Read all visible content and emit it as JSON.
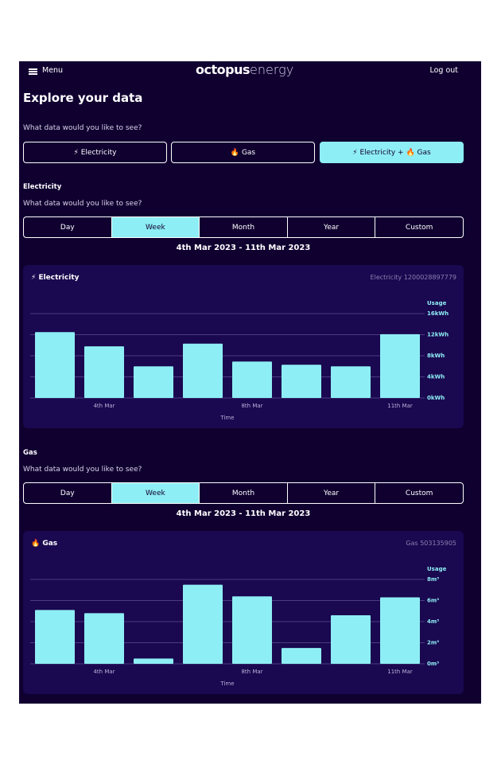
{
  "header": {
    "menu": "Menu",
    "logo_bold": "octopus",
    "logo_light": "energy",
    "logout": "Log out"
  },
  "page": {
    "title": "Explore your data",
    "question": "What data would you like to see?",
    "fuel_options": [
      "⚡ Electricity",
      "🔥 Gas",
      "⚡ Electricity + 🔥 Gas"
    ],
    "fuel_selected": 2
  },
  "sections": [
    {
      "heading": "Electricity",
      "question": "What data would you like to see?",
      "periods": [
        "Day",
        "Week",
        "Month",
        "Year",
        "Custom"
      ],
      "period_selected": 1,
      "date_range": "4th Mar 2023 - 11th Mar 2023",
      "card_title": "⚡ Electricity",
      "meter": "Electricity 1200028897779"
    },
    {
      "heading": "Gas",
      "question": "What data would you like to see?",
      "periods": [
        "Day",
        "Week",
        "Month",
        "Year",
        "Custom"
      ],
      "period_selected": 1,
      "date_range": "4th Mar 2023 - 11th Mar 2023",
      "card_title": "🔥 Gas",
      "meter": "Gas 503135905"
    }
  ],
  "chart_data": [
    {
      "type": "bar",
      "color": "#8eeef5",
      "y_label": "Usage",
      "x_label": "Time",
      "grid": true,
      "categories": [
        null,
        "4th Mar",
        null,
        null,
        "8th Mar",
        null,
        null,
        "11th Mar"
      ],
      "values": [
        12.5,
        9.8,
        6.0,
        10.3,
        6.9,
        6.3,
        6.0,
        12.1
      ],
      "ylim": [
        0,
        16
      ],
      "yticks": [
        {
          "value": 0,
          "label": "0kWh"
        },
        {
          "value": 4,
          "label": "4kWh"
        },
        {
          "value": 8,
          "label": "8kWh"
        },
        {
          "value": 12,
          "label": "12kWh"
        },
        {
          "value": 16,
          "label": "16kWh"
        }
      ]
    },
    {
      "type": "bar",
      "color": "#8eeef5",
      "y_label": "Usage",
      "x_label": "Time",
      "grid": true,
      "categories": [
        null,
        "4th Mar",
        null,
        null,
        "8th Mar",
        null,
        null,
        "11th Mar"
      ],
      "values": [
        5.1,
        4.8,
        0.5,
        7.5,
        6.4,
        1.5,
        4.6,
        6.3
      ],
      "ylim": [
        0,
        8
      ],
      "yticks": [
        {
          "value": 0,
          "label": "0m³"
        },
        {
          "value": 2,
          "label": "2m³"
        },
        {
          "value": 4,
          "label": "4m³"
        },
        {
          "value": 6,
          "label": "6m³"
        },
        {
          "value": 8,
          "label": "8m³"
        }
      ]
    }
  ]
}
